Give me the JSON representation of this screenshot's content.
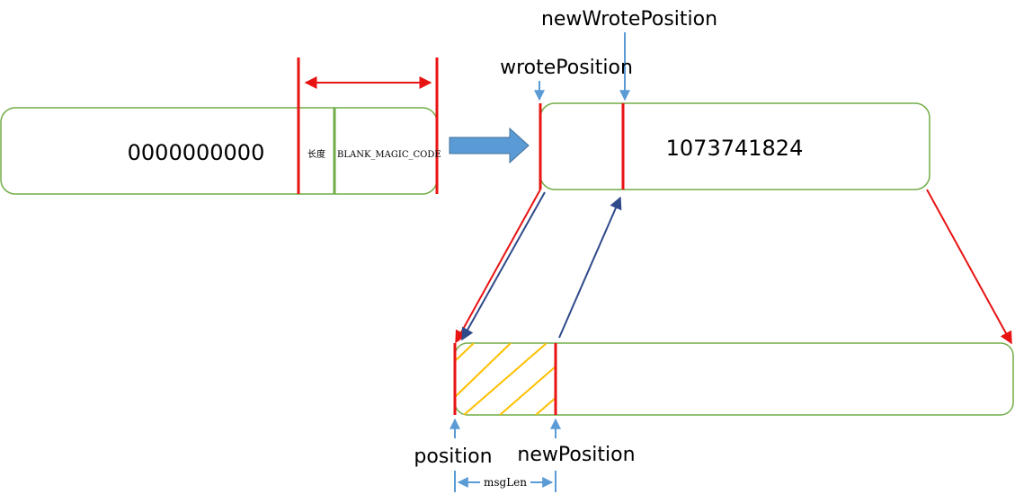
{
  "left_file": {
    "value": "0000000000",
    "length_label": "长度",
    "magic_label": "BLANK_MAGIC_CODE"
  },
  "right_file": {
    "value": "1073741824"
  },
  "labels": {
    "new_wrote_position": "newWrotePosition",
    "wrote_position": "wrotePosition",
    "position": "position",
    "new_position": "newPosition",
    "msg_len": "msgLen"
  },
  "colors": {
    "box_border": "#70ad47",
    "marker_red": "#e81313",
    "arrow_blue": "#5b9bd5",
    "arrow_navy": "#2f4a8a",
    "hatch_yellow": "#ffc000"
  }
}
